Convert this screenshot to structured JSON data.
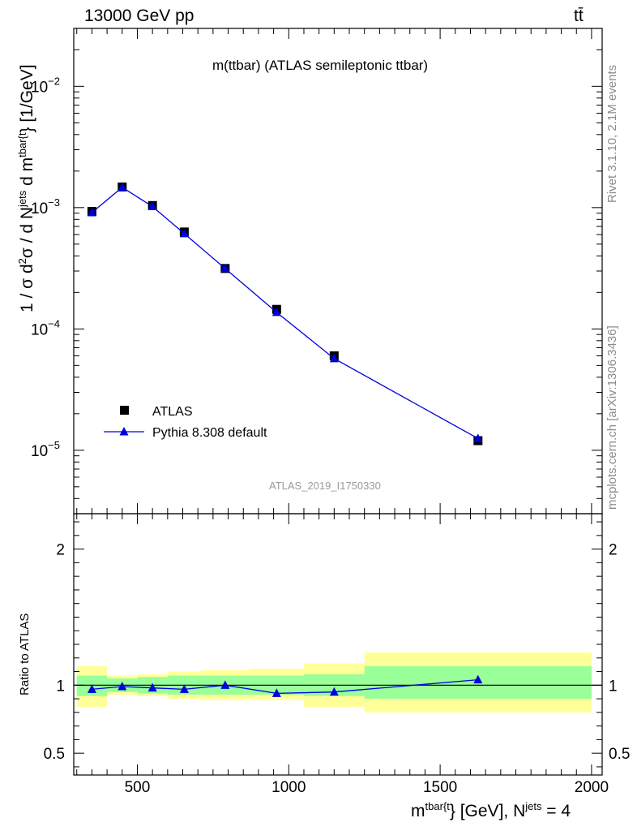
{
  "header": {
    "left": "13000 GeV pp",
    "right": "tt̄"
  },
  "side_labels": {
    "rivet": "Rivet 3.1.10,  2.1M events",
    "mcplots": "mcplots.cern.ch [arXiv:1306.3436]"
  },
  "watermark": "ATLAS_2019_I1750330",
  "chart_data": [
    {
      "type": "scatter",
      "title": "m(ttbar) (ATLAS semileptonic ttbar)",
      "ylabel_parts": {
        "a": "1 / σ d",
        "b": "2",
        "c": "σ / d N",
        "d": "jets",
        "e": " d m",
        "f": "tbar{t",
        "g": "} [1/GeV]"
      },
      "yscale": "log",
      "ylim": [
        3e-06,
        0.03
      ],
      "xlim": [
        290,
        2035
      ],
      "y_tick_labels": [
        {
          "value": 1e-05,
          "base": "10",
          "exp": "−5"
        },
        {
          "value": 0.0001,
          "base": "10",
          "exp": "−4"
        },
        {
          "value": 0.001,
          "base": "10",
          "exp": "−3"
        },
        {
          "value": 0.01,
          "base": "10",
          "exp": "−2"
        }
      ],
      "legend": {
        "position": "bottom-left"
      },
      "series": [
        {
          "name": "ATLAS",
          "marker": "square",
          "color": "#000000",
          "x": [
            350,
            450,
            550,
            655,
            790,
            960,
            1150,
            1625
          ],
          "y": [
            0.00093,
            0.00148,
            0.00104,
            0.00063,
            0.000315,
            0.000145,
            6e-05,
            1.2e-05
          ]
        },
        {
          "name": "Pythia 8.308 default",
          "marker": "triangle",
          "color": "#0000dd",
          "x": [
            350,
            450,
            550,
            655,
            790,
            960,
            1150,
            1625
          ],
          "y": [
            0.00091,
            0.00147,
            0.00102,
            0.00061,
            0.000315,
            0.000137,
            5.7e-05,
            1.25e-05
          ]
        }
      ]
    },
    {
      "type": "line",
      "ylabel": "Ratio to ATLAS",
      "xlabel_parts": {
        "a": "m",
        "b": "tbar{t",
        "c": "} [GeV], N",
        "d": "jets",
        "e": " = 4"
      },
      "xlim": [
        290,
        2035
      ],
      "ylim": [
        0.34,
        2.26
      ],
      "x_tick_labels": [
        "500",
        "1000",
        "1500",
        "2000"
      ],
      "y_tick_labels": [
        "0.5",
        "1",
        "2"
      ],
      "reference_line": 1,
      "bands": [
        {
          "x_low": 300,
          "x_high": 400,
          "inner": [
            0.92,
            1.07
          ],
          "outer": [
            0.84,
            1.14
          ]
        },
        {
          "x_low": 400,
          "x_high": 500,
          "inner": [
            0.95,
            1.05
          ],
          "outer": [
            0.93,
            1.07
          ]
        },
        {
          "x_low": 500,
          "x_high": 600,
          "inner": [
            0.94,
            1.06
          ],
          "outer": [
            0.92,
            1.08
          ]
        },
        {
          "x_low": 600,
          "x_high": 710,
          "inner": [
            0.93,
            1.07
          ],
          "outer": [
            0.9,
            1.1
          ]
        },
        {
          "x_low": 710,
          "x_high": 870,
          "inner": [
            0.93,
            1.07
          ],
          "outer": [
            0.89,
            1.11
          ]
        },
        {
          "x_low": 870,
          "x_high": 1050,
          "inner": [
            0.93,
            1.07
          ],
          "outer": [
            0.89,
            1.12
          ]
        },
        {
          "x_low": 1050,
          "x_high": 1250,
          "inner": [
            0.92,
            1.08
          ],
          "outer": [
            0.84,
            1.16
          ]
        },
        {
          "x_low": 1250,
          "x_high": 2000,
          "inner": [
            0.9,
            1.14
          ],
          "outer": [
            0.8,
            1.24
          ]
        }
      ],
      "series": [
        {
          "name": "Pythia 8.308 default",
          "color": "#0000dd",
          "x": [
            350,
            450,
            550,
            655,
            790,
            960,
            1150,
            1625
          ],
          "y": [
            0.97,
            0.99,
            0.98,
            0.97,
            1.0,
            0.94,
            0.95,
            1.04
          ]
        }
      ]
    }
  ]
}
